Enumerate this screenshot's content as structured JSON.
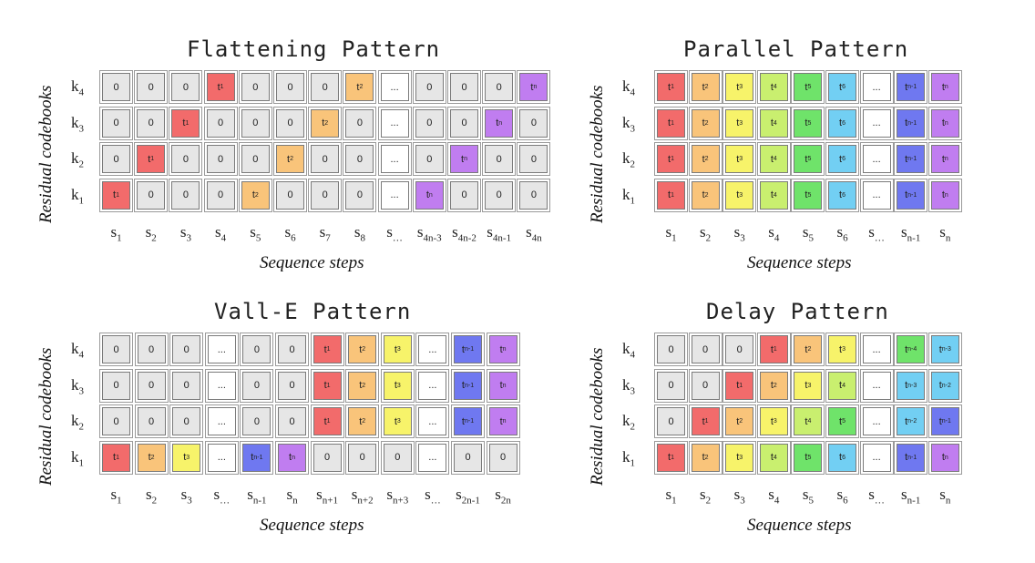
{
  "colors": {
    "zero": "#e6e6e6",
    "dots": "#ffffff",
    "t": [
      "#f26b6b",
      "#f9c47a",
      "#f7f36a",
      "#c9ef6f",
      "#6fe36a",
      "#72cff3",
      "#ffffff",
      "#6f78f0",
      "#c07df0"
    ]
  },
  "panels": [
    {
      "id": "flattening",
      "title": "Flattening Pattern",
      "ylabel": "Residual codebooks",
      "xlabel": "Sequence steps",
      "rows": [
        {
          "label": "k",
          "sub": "4",
          "cells": [
            "0",
            "0",
            "0",
            "t1",
            "0",
            "0",
            "0",
            "t2",
            "...",
            "0",
            "0",
            "0",
            "tn"
          ]
        },
        {
          "label": "k",
          "sub": "3",
          "cells": [
            "0",
            "0",
            "t1",
            "0",
            "0",
            "0",
            "t2",
            "0",
            "...",
            "0",
            "0",
            "tn",
            "0"
          ]
        },
        {
          "label": "k",
          "sub": "2",
          "cells": [
            "0",
            "t1",
            "0",
            "0",
            "0",
            "t2",
            "0",
            "0",
            "...",
            "0",
            "tn",
            "0",
            "0"
          ]
        },
        {
          "label": "k",
          "sub": "1",
          "cells": [
            "t1",
            "0",
            "0",
            "0",
            "t2",
            "0",
            "0",
            "0",
            "...",
            "tn",
            "0",
            "0",
            "0"
          ]
        }
      ],
      "steps": [
        [
          "s",
          "1"
        ],
        [
          "s",
          "2"
        ],
        [
          "s",
          "3"
        ],
        [
          "s",
          "4"
        ],
        [
          "s",
          "5"
        ],
        [
          "s",
          "6"
        ],
        [
          "s",
          "7"
        ],
        [
          "s",
          "8"
        ],
        [
          "s",
          "…"
        ],
        [
          "s",
          "4n-3"
        ],
        [
          "s",
          "4n-2"
        ],
        [
          "s",
          "4n-1"
        ],
        [
          "s",
          "4n"
        ]
      ]
    },
    {
      "id": "parallel",
      "title": "Parallel Pattern",
      "ylabel": "Residual codebooks",
      "xlabel": "Sequence steps",
      "rows": [
        {
          "label": "k",
          "sub": "4",
          "cells": [
            "t1",
            "t2",
            "t3",
            "t4",
            "t5",
            "t6",
            "...",
            "tn-1",
            "tn"
          ]
        },
        {
          "label": "k",
          "sub": "3",
          "cells": [
            "t1",
            "t2",
            "t3",
            "t4",
            "t5",
            "t6",
            "...",
            "tn-1",
            "tn"
          ]
        },
        {
          "label": "k",
          "sub": "2",
          "cells": [
            "t1",
            "t2",
            "t3",
            "t4",
            "t5",
            "t6",
            "...",
            "tn-1",
            "tn"
          ]
        },
        {
          "label": "k",
          "sub": "1",
          "cells": [
            "t1",
            "t2",
            "t3",
            "t4",
            "t5",
            "t6",
            "...",
            "tn-1",
            "tn"
          ]
        }
      ],
      "steps": [
        [
          "s",
          "1"
        ],
        [
          "s",
          "2"
        ],
        [
          "s",
          "3"
        ],
        [
          "s",
          "4"
        ],
        [
          "s",
          "5"
        ],
        [
          "s",
          "6"
        ],
        [
          "s",
          "…"
        ],
        [
          "s",
          "n-1"
        ],
        [
          "s",
          "n"
        ]
      ]
    },
    {
      "id": "valle",
      "title": "Vall-E Pattern",
      "ylabel": "Residual codebooks",
      "xlabel": "Sequence steps",
      "rows": [
        {
          "label": "k",
          "sub": "4",
          "cells": [
            "0",
            "0",
            "0",
            "...",
            "0",
            "0",
            "t1",
            "t2",
            "t3",
            "...",
            "tn-1",
            "tn"
          ]
        },
        {
          "label": "k",
          "sub": "3",
          "cells": [
            "0",
            "0",
            "0",
            "...",
            "0",
            "0",
            "t1",
            "t2",
            "t3",
            "...",
            "tn-1",
            "tn"
          ]
        },
        {
          "label": "k",
          "sub": "2",
          "cells": [
            "0",
            "0",
            "0",
            "...",
            "0",
            "0",
            "t1",
            "t2",
            "t3",
            "...",
            "tn-1",
            "tn"
          ]
        },
        {
          "label": "k",
          "sub": "1",
          "cells": [
            "t1",
            "t2",
            "t3",
            "...",
            "tn-1",
            "tn",
            "0",
            "0",
            "0",
            "...",
            "0",
            "0"
          ]
        }
      ],
      "steps": [
        [
          "s",
          "1"
        ],
        [
          "s",
          "2"
        ],
        [
          "s",
          "3"
        ],
        [
          "s",
          "…"
        ],
        [
          "s",
          "n-1"
        ],
        [
          "s",
          "n"
        ],
        [
          "s",
          "n+1"
        ],
        [
          "s",
          "n+2"
        ],
        [
          "s",
          "n+3"
        ],
        [
          "s",
          "…"
        ],
        [
          "s",
          "2n-1"
        ],
        [
          "s",
          "2n"
        ]
      ]
    },
    {
      "id": "delay",
      "title": "Delay Pattern",
      "ylabel": "Residual codebooks",
      "xlabel": "Sequence steps",
      "rows": [
        {
          "label": "k",
          "sub": "4",
          "cells": [
            "0",
            "0",
            "0",
            "t1",
            "t2",
            "t3",
            "...",
            "tn-4",
            "tn-3"
          ]
        },
        {
          "label": "k",
          "sub": "3",
          "cells": [
            "0",
            "0",
            "t1",
            "t2",
            "t3",
            "t4",
            "...",
            "tn-3",
            "tn-2"
          ]
        },
        {
          "label": "k",
          "sub": "2",
          "cells": [
            "0",
            "t1",
            "t2",
            "t3",
            "t4",
            "t5",
            "...",
            "tn-2",
            "tn-1"
          ]
        },
        {
          "label": "k",
          "sub": "1",
          "cells": [
            "t1",
            "t2",
            "t3",
            "t4",
            "t5",
            "t6",
            "...",
            "tn-1",
            "tn"
          ]
        }
      ],
      "steps": [
        [
          "s",
          "1"
        ],
        [
          "s",
          "2"
        ],
        [
          "s",
          "3"
        ],
        [
          "s",
          "4"
        ],
        [
          "s",
          "5"
        ],
        [
          "s",
          "6"
        ],
        [
          "s",
          "…"
        ],
        [
          "s",
          "n-1"
        ],
        [
          "s",
          "n"
        ]
      ]
    }
  ]
}
